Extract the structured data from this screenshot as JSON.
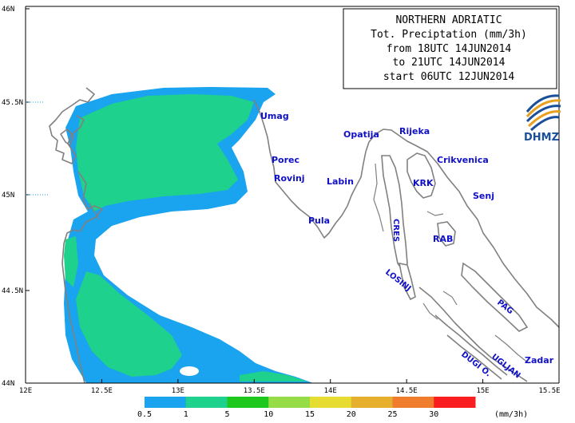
{
  "title": {
    "lines": [
      "NORTHERN ADRIATIC",
      "Tot. Preciptation (mm/3h)",
      "from 18UTC 14JUN2014",
      "to 21UTC 14JUN2014",
      "start 06UTC 12JUN2014"
    ]
  },
  "logo": {
    "text": "DHMZ",
    "icon": "dhmz-swirl-icon"
  },
  "axes": {
    "x_ticks": [
      "12E",
      "12.5E",
      "13E",
      "13.5E",
      "14E",
      "14.5E",
      "15E",
      "15.5E"
    ],
    "y_ticks": [
      "46N",
      "45.5N",
      "45N",
      "44.5N",
      "44N"
    ]
  },
  "places": {
    "umag": "Umag",
    "porec": "Porec",
    "rovinj": "Rovinj",
    "pula": "Pula",
    "labin": "Labin",
    "opatija": "Opatija",
    "rijeka": "Rijeka",
    "crikvenica": "Crikvenica",
    "krk": "KRK",
    "senj": "Senj",
    "cres": "CRES",
    "rab": "RAB",
    "losinj": "LOSINJ",
    "pag": "PAG",
    "ugljan": "UGLJAN",
    "dugi_o": "DUGI O.",
    "zadar": "Zadar"
  },
  "legend": {
    "labels": [
      "0.5",
      "1",
      "5",
      "10",
      "15",
      "20",
      "25",
      "30"
    ],
    "unit": "(mm/3h)",
    "colors": [
      "#1aa3ee",
      "#1ed18c",
      "#1ec81e",
      "#96dc46",
      "#e6dc32",
      "#e6af2d",
      "#f07d2d",
      "#fa1e1e"
    ]
  },
  "colors": {
    "light_precip": "#1aa3ee",
    "moderate_precip": "#1ed18c",
    "coastline": "#808080",
    "place_label": "#1010c8"
  }
}
